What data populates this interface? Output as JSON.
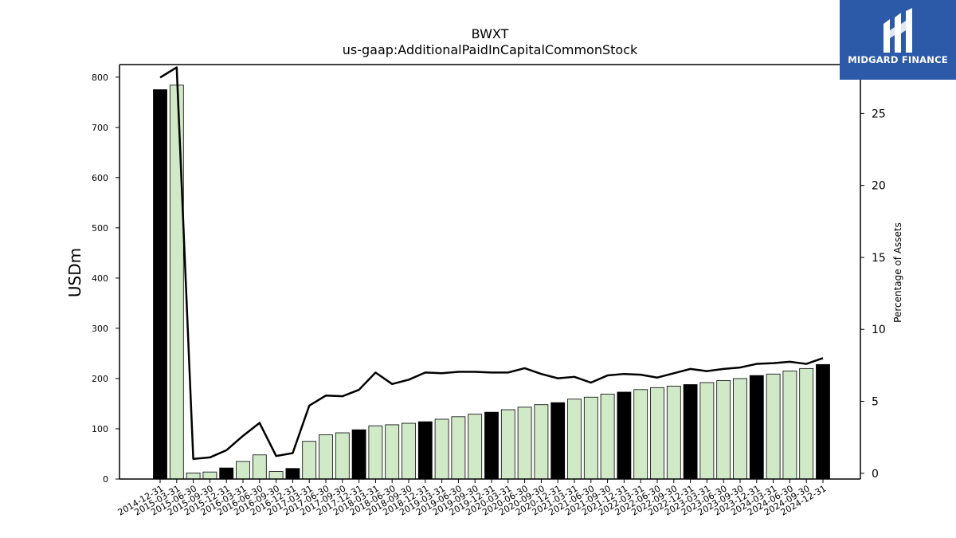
{
  "chart_data": {
    "type": "bar",
    "title": "BWXT",
    "subtitle": "us-gaap:AdditionalPaidInCapitalCommonStock",
    "ylabel": "USDm",
    "y2label": "Percentage of Assets",
    "ylim": [
      0,
      825
    ],
    "y2lim": [
      -0.4,
      28.4
    ],
    "yticks": [
      0,
      100,
      200,
      300,
      400,
      500,
      600,
      700,
      800
    ],
    "y2ticks": [
      0,
      5,
      10,
      15,
      20,
      25
    ],
    "colors": {
      "annual": "#000000",
      "quarter": "#d0e9c6",
      "line": "#000000"
    },
    "categories": [
      "2014-12-31",
      "2015-03-31",
      "2015-06-30",
      "2015-09-30",
      "2015-12-31",
      "2016-03-31",
      "2016-06-30",
      "2016-09-30",
      "2016-12-31",
      "2017-03-31",
      "2017-06-30",
      "2017-09-30",
      "2017-12-31",
      "2018-03-31",
      "2018-06-30",
      "2018-09-30",
      "2018-12-31",
      "2019-03-31",
      "2019-06-30",
      "2019-09-30",
      "2019-12-31",
      "2020-03-31",
      "2020-06-30",
      "2020-09-30",
      "2020-12-31",
      "2021-03-31",
      "2021-06-30",
      "2021-09-30",
      "2021-12-31",
      "2022-03-31",
      "2022-06-30",
      "2022-09-30",
      "2022-12-31",
      "2023-03-31",
      "2023-06-30",
      "2023-09-30",
      "2023-12-31",
      "2024-03-31",
      "2024-06-30",
      "2024-09-30",
      "2024-12-31"
    ],
    "series": [
      {
        "kind": "bar",
        "values": [
          775,
          784,
          12,
          14,
          22,
          35,
          48,
          15,
          21,
          75,
          88,
          92,
          98,
          106,
          108,
          111,
          114,
          119,
          124,
          129,
          133,
          138,
          143,
          148,
          152,
          159,
          163,
          169,
          173,
          178,
          182,
          185,
          188,
          192,
          196,
          200,
          206,
          209,
          215,
          220,
          228
        ]
      },
      {
        "kind": "line",
        "values": [
          27.5,
          28.2,
          1.0,
          1.1,
          1.6,
          2.6,
          3.5,
          1.2,
          1.4,
          4.7,
          5.4,
          5.35,
          5.8,
          7.0,
          6.2,
          6.5,
          7.0,
          6.95,
          7.05,
          7.05,
          7.0,
          7.0,
          7.3,
          6.9,
          6.6,
          6.7,
          6.3,
          6.8,
          6.9,
          6.85,
          6.65,
          6.95,
          7.25,
          7.1,
          7.25,
          7.35,
          7.6,
          7.65,
          7.75,
          7.6,
          8.0
        ]
      }
    ],
    "bar_types": [
      "annual",
      "quarter",
      "quarter",
      "quarter",
      "annual",
      "quarter",
      "quarter",
      "quarter",
      "annual",
      "quarter",
      "quarter",
      "quarter",
      "annual",
      "quarter",
      "quarter",
      "quarter",
      "annual",
      "quarter",
      "quarter",
      "quarter",
      "annual",
      "quarter",
      "quarter",
      "quarter",
      "annual",
      "quarter",
      "quarter",
      "quarter",
      "annual",
      "quarter",
      "quarter",
      "quarter",
      "annual",
      "quarter",
      "quarter",
      "quarter",
      "annual",
      "quarter",
      "quarter",
      "quarter",
      "annual"
    ]
  },
  "brand": {
    "name": "MIDGARD FINANCE",
    "icon": "midgard-logo-icon"
  }
}
